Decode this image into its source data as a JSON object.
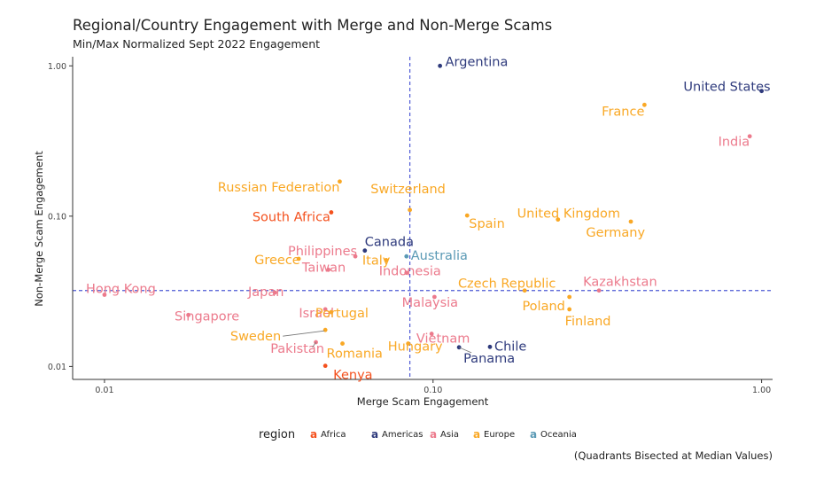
{
  "chart_data": {
    "type": "scatter",
    "title": "Regional/Country Engagement with Merge and Non-Merge Scams",
    "subtitle": "Min/Max Normalized Sept 2022 Engagement",
    "xlabel": "Merge Scam Engagement",
    "ylabel": "Non-Merge Scam Engagement",
    "x_scale": "log10",
    "y_scale": "log10",
    "xlim": [
      0.008,
      1.08
    ],
    "ylim": [
      0.0082,
      1.15
    ],
    "x_ticks": [
      0.01,
      0.1,
      1.0
    ],
    "x_tick_labels": [
      "0.01",
      "0.10",
      "1.00"
    ],
    "y_ticks": [
      0.01,
      0.1,
      1.0
    ],
    "y_tick_labels": [
      "0.01",
      "0.10",
      "1.00"
    ],
    "grid": false,
    "median_lines": {
      "x": 0.085,
      "y": 0.032
    },
    "legend": {
      "title": "region",
      "placement": "bottom",
      "entries": [
        {
          "name": "Africa",
          "color": "#f4511e"
        },
        {
          "name": "Americas",
          "color": "#2e3a7c"
        },
        {
          "name": "Asia",
          "color": "#ec7a8c"
        },
        {
          "name": "Europe",
          "color": "#f9a825"
        },
        {
          "name": "Oceania",
          "color": "#5b9ab5"
        }
      ]
    },
    "caption": "(Quadrants Bisected at Median Values)",
    "points": [
      {
        "label": "Argentina",
        "region": "Americas",
        "x": 0.105,
        "y": 1.0
      },
      {
        "label": "United States",
        "region": "Americas",
        "x": 1.0,
        "y": 0.68
      },
      {
        "label": "France",
        "region": "Europe",
        "x": 0.44,
        "y": 0.55
      },
      {
        "label": "India",
        "region": "Asia",
        "x": 0.92,
        "y": 0.34
      },
      {
        "label": "Russian Federation",
        "region": "Europe",
        "x": 0.052,
        "y": 0.17
      },
      {
        "label": "Switzerland",
        "region": "Europe",
        "x": 0.085,
        "y": 0.11
      },
      {
        "label": "South Africa",
        "region": "Africa",
        "x": 0.049,
        "y": 0.106
      },
      {
        "label": "United Kingdom",
        "region": "Europe",
        "x": 0.24,
        "y": 0.095
      },
      {
        "label": "Spain",
        "region": "Europe",
        "x": 0.127,
        "y": 0.101
      },
      {
        "label": "Germany",
        "region": "Europe",
        "x": 0.4,
        "y": 0.092
      },
      {
        "label": "Canada",
        "region": "Americas",
        "x": 0.062,
        "y": 0.059
      },
      {
        "label": "Philippines",
        "region": "Asia",
        "x": 0.058,
        "y": 0.054
      },
      {
        "label": "Italy",
        "region": "Europe",
        "x": 0.072,
        "y": 0.051
      },
      {
        "label": "Australia",
        "region": "Oceania",
        "x": 0.083,
        "y": 0.054
      },
      {
        "label": "Greece",
        "region": "Europe",
        "x": 0.039,
        "y": 0.052
      },
      {
        "label": "Taiwan",
        "region": "Asia",
        "x": 0.048,
        "y": 0.044
      },
      {
        "label": "Indonesia",
        "region": "Asia",
        "x": 0.083,
        "y": 0.042
      },
      {
        "label": "Czech Republic",
        "region": "Europe",
        "x": 0.19,
        "y": 0.032
      },
      {
        "label": "Kazakhstan",
        "region": "Asia",
        "x": 0.32,
        "y": 0.032
      },
      {
        "label": "Hong Kong",
        "region": "Asia",
        "x": 0.01,
        "y": 0.03
      },
      {
        "label": "Japan",
        "region": "Asia",
        "x": 0.033,
        "y": 0.031
      },
      {
        "label": "Poland",
        "region": "Europe",
        "x": 0.26,
        "y": 0.029
      },
      {
        "label": "Malaysia",
        "region": "Asia",
        "x": 0.101,
        "y": 0.029
      },
      {
        "label": "Finland",
        "region": "Europe",
        "x": 0.26,
        "y": 0.024
      },
      {
        "label": "Singapore",
        "region": "Asia",
        "x": 0.018,
        "y": 0.022
      },
      {
        "label": "Israel",
        "region": "Asia",
        "x": 0.047,
        "y": 0.024
      },
      {
        "label": "Portugal",
        "region": "Europe",
        "x": 0.049,
        "y": 0.023
      },
      {
        "label": "Vietnam",
        "region": "Asia",
        "x": 0.099,
        "y": 0.0165
      },
      {
        "label": "Sweden",
        "region": "Europe",
        "x": 0.047,
        "y": 0.0175
      },
      {
        "label": "Chile",
        "region": "Americas",
        "x": 0.149,
        "y": 0.0135
      },
      {
        "label": "Hungary",
        "region": "Europe",
        "x": 0.084,
        "y": 0.0142
      },
      {
        "label": "Romania",
        "region": "Europe",
        "x": 0.053,
        "y": 0.0142
      },
      {
        "label": "Pakistan",
        "region": "Asia",
        "x": 0.044,
        "y": 0.0145
      },
      {
        "label": "Panama",
        "region": "Americas",
        "x": 0.12,
        "y": 0.0134
      },
      {
        "label": "Kenya",
        "region": "Africa",
        "x": 0.047,
        "y": 0.0101
      }
    ]
  }
}
